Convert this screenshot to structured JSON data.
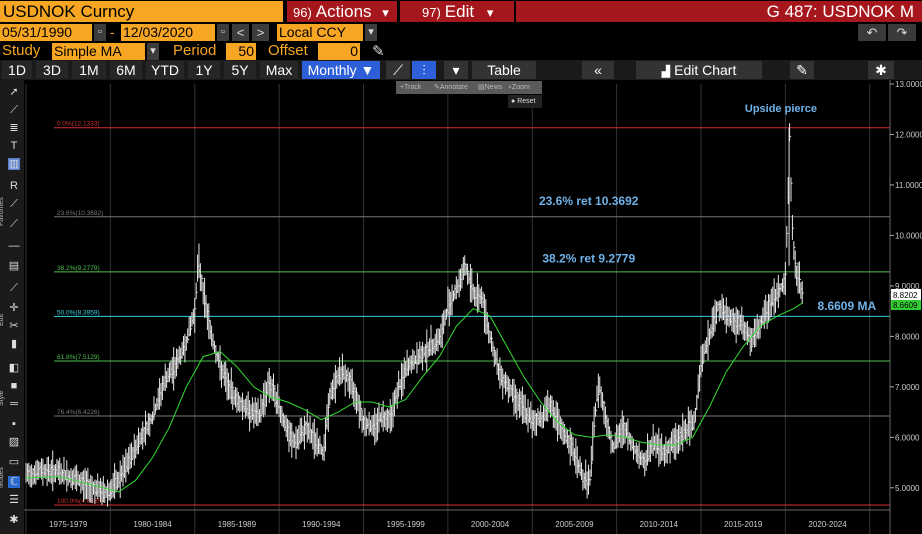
{
  "title_bar": {
    "ticker": "USDNOK Curncy",
    "actions_num": "96)",
    "actions_label": "Actions",
    "actions_arrow": "▾",
    "edit_num": "97)",
    "edit_label": "Edit",
    "edit_arrow": "▾",
    "right_title": "G 487: USDNOK M"
  },
  "date_row": {
    "start_date": "05/31/1990",
    "separator": "-",
    "end_date": "12/03/2020",
    "currency": "Local CCY",
    "prev_label": "<",
    "next_label": ">",
    "cal_icon": "▫",
    "dropdown_icon": "▾",
    "undo_icon": "↶",
    "redo_icon": "↷"
  },
  "study_row": {
    "study_label": "Study",
    "study_value": "Simple MA",
    "period_label": "Period",
    "period_value": "50",
    "offset_label": "Offset",
    "offset_value": "0",
    "dropdown_icon": "▾",
    "pen_icon": "✎"
  },
  "toolbar": {
    "periods": [
      "1D",
      "3D",
      "1M",
      "6M",
      "YTD",
      "1Y",
      "5Y",
      "Max"
    ],
    "frequency": "Monthly ▼",
    "table_label": "Table",
    "collapse_icon": "«",
    "edit_chart_label": "Edit Chart",
    "gear_icon": "✱",
    "line_icon": "⟋",
    "bar_icon": "⫶",
    "dropdown_icon": "▾",
    "edit_icon": "✎"
  },
  "popup": {
    "track": "Track",
    "annotate": "Annotate",
    "news": "News",
    "zoom": "Zoom",
    "reset": "Reset"
  },
  "left_toolbar": {
    "labels": [
      "Favorites",
      "Edit",
      "Style",
      "Modes"
    ]
  },
  "colors": {
    "orange": "#f6a623",
    "red_header": "#a5171d",
    "monthly_blue": "#2d5fd9",
    "ma_green": "#33dd33",
    "annotation_blue": "#6fb2e8",
    "fib_red": "#d03030",
    "fib_green": "#4cc14c",
    "fib_cyan": "#3ad0e0",
    "fib_gray": "#777777"
  },
  "chart_data": {
    "type": "line",
    "series_name": "USDNOK",
    "frequency": "Monthly",
    "ylim": [
      4.6,
      13.0
    ],
    "y_ticks": [
      "13.0000",
      "12.0000",
      "11.0000",
      "10.0000",
      "9.0000",
      "8.0000",
      "7.0000",
      "6.0000",
      "5.0000"
    ],
    "x_ticks": [
      "1975-1979",
      "1980-1984",
      "1985-1989",
      "1990-1994",
      "1995-1999",
      "2000-2004",
      "2005-2009",
      "2010-2014",
      "2015-2019",
      "2020-2024"
    ],
    "fib_levels": [
      {
        "label": "0.0%(12.1333)",
        "value": 12.1333,
        "color": "#d03030"
      },
      {
        "label": "23.6%(10.3692)",
        "value": 10.3692,
        "color": "#777777"
      },
      {
        "label": "38.2%(9.2779)",
        "value": 9.2779,
        "color": "#4cc14c"
      },
      {
        "label": "50.0%(8.3959)",
        "value": 8.3959,
        "color": "#3ad0e0"
      },
      {
        "label": "61.8%(7.5129)",
        "value": 7.5129,
        "color": "#4cc14c"
      },
      {
        "label": "76.4%(6.4226)",
        "value": 6.4226,
        "color": "#777777"
      },
      {
        "label": "100.0%(4.6585)",
        "value": 4.6585,
        "color": "#d03030"
      }
    ],
    "annotations": [
      "Upside pierce",
      "23.6% ret 10.3692",
      "38.2% ret 9.2779",
      "8.6609 MA"
    ],
    "last_price": "8.8202",
    "ma_value": "8.6609",
    "price_path": [
      [
        1975.0,
        5.25
      ],
      [
        1976.0,
        5.35
      ],
      [
        1977.0,
        5.3
      ],
      [
        1978.0,
        5.15
      ],
      [
        1979.0,
        5.0
      ],
      [
        1979.6,
        4.9
      ],
      [
        1980.0,
        4.95
      ],
      [
        1980.6,
        5.2
      ],
      [
        1981.2,
        5.6
      ],
      [
        1981.8,
        6.0
      ],
      [
        1982.5,
        6.4
      ],
      [
        1983.2,
        7.1
      ],
      [
        1983.8,
        7.4
      ],
      [
        1984.4,
        7.8
      ],
      [
        1985.0,
        8.5
      ],
      [
        1985.2,
        9.5
      ],
      [
        1985.6,
        8.7
      ],
      [
        1986.0,
        8.0
      ],
      [
        1986.5,
        7.4
      ],
      [
        1987.0,
        7.0
      ],
      [
        1987.6,
        6.7
      ],
      [
        1988.2,
        6.55
      ],
      [
        1988.8,
        6.4
      ],
      [
        1989.4,
        7.1
      ],
      [
        1990.0,
        6.6
      ],
      [
        1990.6,
        6.0
      ],
      [
        1991.0,
        5.9
      ],
      [
        1991.6,
        6.2
      ],
      [
        1992.0,
        6.0
      ],
      [
        1992.6,
        5.7
      ],
      [
        1993.0,
        6.8
      ],
      [
        1993.6,
        7.3
      ],
      [
        1994.0,
        7.2
      ],
      [
        1994.6,
        6.8
      ],
      [
        1995.0,
        6.3
      ],
      [
        1995.6,
        6.2
      ],
      [
        1996.0,
        6.4
      ],
      [
        1996.6,
        6.4
      ],
      [
        1997.0,
        6.9
      ],
      [
        1997.6,
        7.4
      ],
      [
        1998.0,
        7.5
      ],
      [
        1998.6,
        7.7
      ],
      [
        1999.0,
        7.8
      ],
      [
        1999.6,
        8.0
      ],
      [
        2000.0,
        8.6
      ],
      [
        2000.6,
        9.0
      ],
      [
        2001.0,
        9.4
      ],
      [
        2001.6,
        8.8
      ],
      [
        2002.0,
        8.8
      ],
      [
        2002.5,
        8.0
      ],
      [
        2003.0,
        7.3
      ],
      [
        2003.6,
        7.0
      ],
      [
        2004.0,
        6.8
      ],
      [
        2004.6,
        6.5
      ],
      [
        2005.0,
        6.3
      ],
      [
        2005.6,
        6.4
      ],
      [
        2006.0,
        6.7
      ],
      [
        2006.6,
        6.2
      ],
      [
        2007.0,
        6.0
      ],
      [
        2007.6,
        5.6
      ],
      [
        2008.0,
        5.2
      ],
      [
        2008.4,
        5.1
      ],
      [
        2008.8,
        6.8
      ],
      [
        2009.0,
        7.0
      ],
      [
        2009.4,
        6.3
      ],
      [
        2009.8,
        5.8
      ],
      [
        2010.4,
        6.2
      ],
      [
        2011.0,
        5.8
      ],
      [
        2011.6,
        5.5
      ],
      [
        2012.2,
        5.9
      ],
      [
        2012.8,
        5.7
      ],
      [
        2013.4,
        5.9
      ],
      [
        2014.0,
        6.1
      ],
      [
        2014.6,
        6.3
      ],
      [
        2015.0,
        7.5
      ],
      [
        2015.5,
        8.0
      ],
      [
        2016.0,
        8.6
      ],
      [
        2016.5,
        8.4
      ],
      [
        2017.0,
        8.3
      ],
      [
        2017.5,
        8.2
      ],
      [
        2018.0,
        7.9
      ],
      [
        2018.5,
        8.2
      ],
      [
        2019.0,
        8.6
      ],
      [
        2019.6,
        8.9
      ],
      [
        2020.0,
        9.1
      ],
      [
        2020.2,
        11.2
      ],
      [
        2020.25,
        12.0
      ],
      [
        2020.4,
        10.2
      ],
      [
        2020.6,
        9.3
      ],
      [
        2020.8,
        9.1
      ],
      [
        2021.0,
        8.82
      ]
    ],
    "ma_path": [
      [
        1975.0,
        5.2
      ],
      [
        1977.0,
        5.22
      ],
      [
        1979.0,
        5.05
      ],
      [
        1980.5,
        4.92
      ],
      [
        1981.5,
        5.15
      ],
      [
        1982.5,
        5.6
      ],
      [
        1983.5,
        6.2
      ],
      [
        1984.5,
        7.0
      ],
      [
        1985.5,
        7.6
      ],
      [
        1986.5,
        7.7
      ],
      [
        1987.5,
        7.4
      ],
      [
        1988.5,
        7.0
      ],
      [
        1989.5,
        6.8
      ],
      [
        1990.5,
        6.7
      ],
      [
        1991.5,
        6.55
      ],
      [
        1992.5,
        6.35
      ],
      [
        1993.5,
        6.5
      ],
      [
        1994.5,
        6.7
      ],
      [
        1995.5,
        6.7
      ],
      [
        1996.5,
        6.6
      ],
      [
        1997.5,
        6.75
      ],
      [
        1998.5,
        7.2
      ],
      [
        1999.5,
        7.6
      ],
      [
        2000.5,
        8.2
      ],
      [
        2001.5,
        8.55
      ],
      [
        2002.5,
        8.4
      ],
      [
        2003.5,
        7.8
      ],
      [
        2004.5,
        7.2
      ],
      [
        2005.5,
        6.7
      ],
      [
        2006.5,
        6.3
      ],
      [
        2007.5,
        6.05
      ],
      [
        2008.5,
        6.0
      ],
      [
        2009.5,
        6.05
      ],
      [
        2010.5,
        6.0
      ],
      [
        2011.5,
        5.9
      ],
      [
        2012.5,
        5.85
      ],
      [
        2013.5,
        5.85
      ],
      [
        2014.5,
        6.0
      ],
      [
        2015.5,
        6.6
      ],
      [
        2016.5,
        7.3
      ],
      [
        2017.5,
        7.8
      ],
      [
        2018.5,
        8.2
      ],
      [
        2019.5,
        8.4
      ],
      [
        2020.5,
        8.55
      ],
      [
        2021.0,
        8.66
      ]
    ]
  }
}
